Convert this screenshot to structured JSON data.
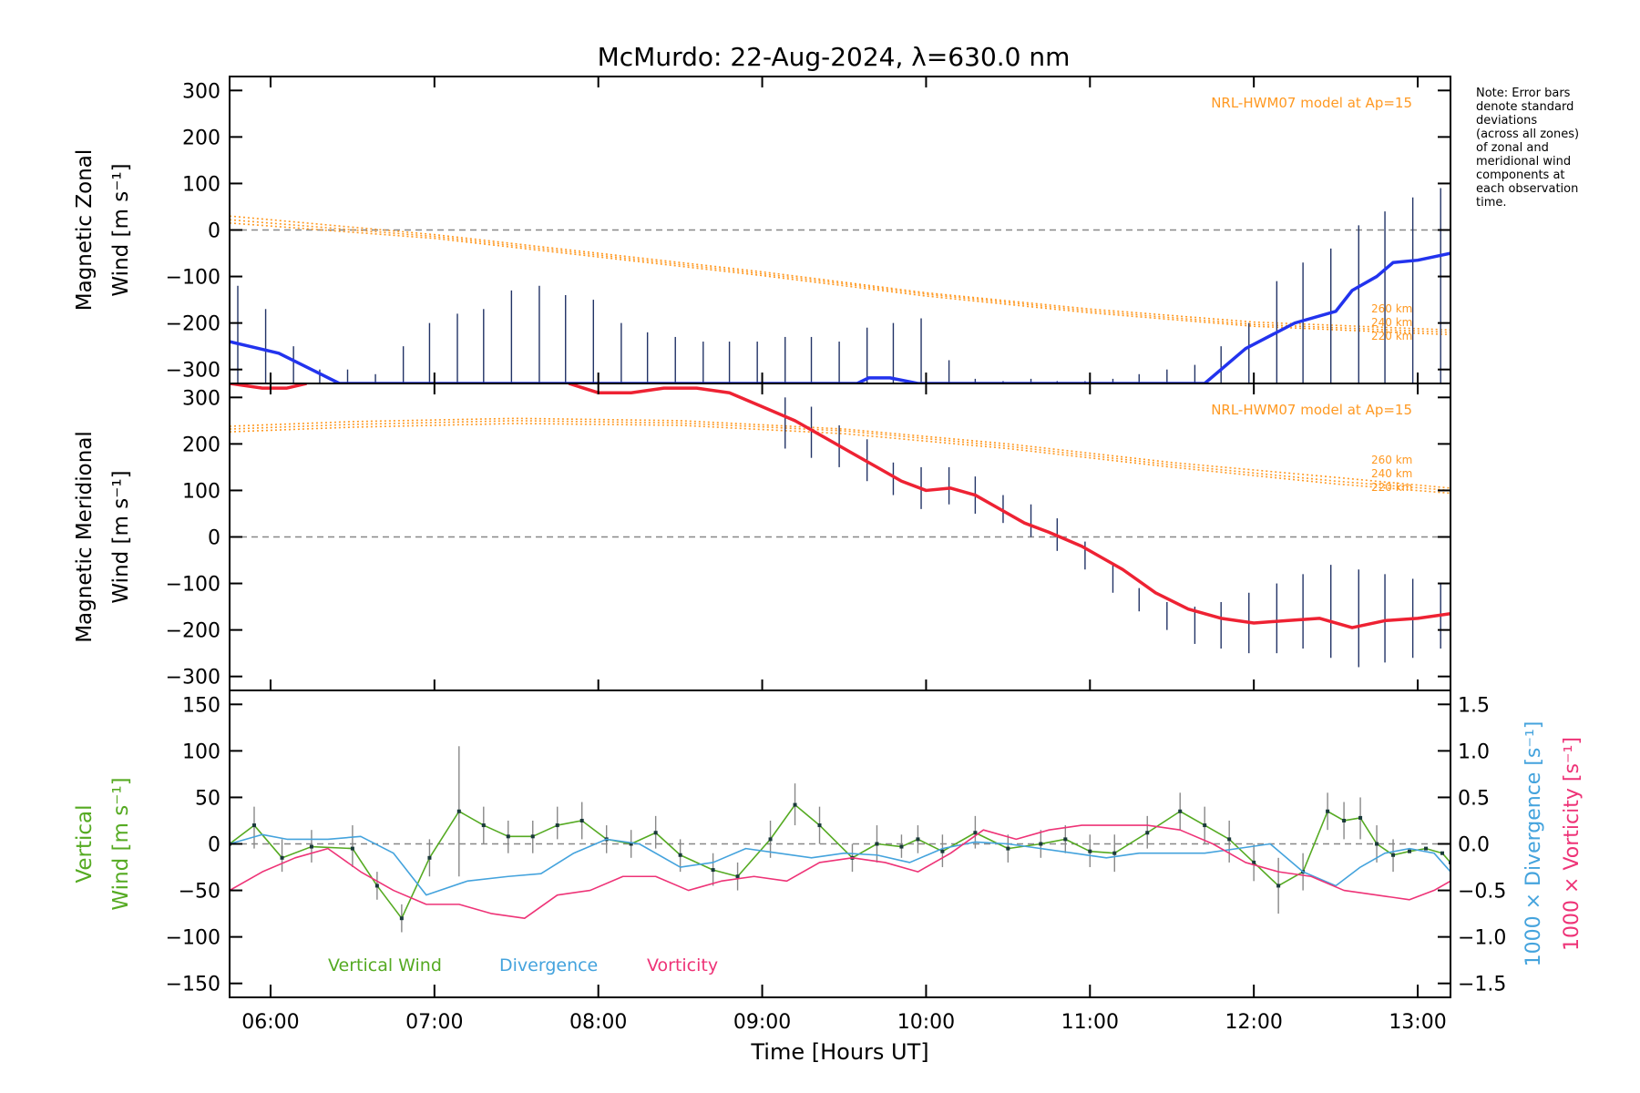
{
  "title": "McMurdo: 22-Aug-2024, λ=630.0 nm",
  "note": "Note: Error bars\ndenote standard\ndeviations\n(across all zones)\nof zonal and\nmeridional wind\ncomponents at\neach observation\ntime.",
  "colors": {
    "zonal": "#2233ee",
    "meridional": "#ee2233",
    "vertical": "#55aa22",
    "divergence": "#44a3dd",
    "vorticity": "#ee3377",
    "model": "#ff9922",
    "errorbar": "#223366",
    "zero": "#888888"
  },
  "chart_data": [
    {
      "type": "line",
      "panel": "zonal",
      "ylabel": [
        "Magnetic Zonal",
        "Wind [m s⁻¹]"
      ],
      "ylim": [
        -330,
        330
      ],
      "yticks": [
        300,
        200,
        100,
        0,
        -100,
        -200,
        -300
      ],
      "xlim": [
        5.75,
        13.2
      ],
      "model_label": "NRL-HWM07 model at Ap=15",
      "model_curves": [
        {
          "name": "260 km",
          "x": [
            5.75,
            7,
            8,
            9,
            10,
            11,
            12,
            13.2
          ],
          "y": [
            30,
            -10,
            -50,
            -90,
            -135,
            -170,
            -198,
            -215
          ]
        },
        {
          "name": "240 km",
          "x": [
            5.75,
            7,
            8,
            9,
            10,
            11,
            12,
            13.2
          ],
          "y": [
            22,
            -14,
            -54,
            -94,
            -138,
            -174,
            -203,
            -220
          ]
        },
        {
          "name": "220 km",
          "x": [
            5.75,
            7,
            8,
            9,
            10,
            11,
            12,
            13.2
          ],
          "y": [
            15,
            -18,
            -58,
            -98,
            -142,
            -178,
            -207,
            -225
          ]
        }
      ],
      "model_height_labels": [
        "260 km",
        "240 km",
        "220 km"
      ],
      "series": [
        {
          "name": "",
          "x": [
            5.75,
            6.05,
            6.25,
            6.42,
            9.58,
            9.65,
            9.78,
            9.95,
            11.7,
            11.95,
            12.25,
            12.5,
            12.6,
            12.75,
            12.85,
            13.0,
            13.2
          ],
          "y": [
            -240,
            -265,
            -300,
            -330,
            -330,
            -318,
            -318,
            -330,
            -330,
            -255,
            -200,
            -175,
            -130,
            -100,
            -70,
            -65,
            -50
          ]
        }
      ],
      "errorbars": {
        "x": [
          5.8,
          5.97,
          6.14,
          6.3,
          6.47,
          6.64,
          6.81,
          6.97,
          7.14,
          7.3,
          7.47,
          7.64,
          7.8,
          7.97,
          8.14,
          8.3,
          8.47,
          8.64,
          8.8,
          8.97,
          9.14,
          9.3,
          9.47,
          9.64,
          9.8,
          9.97,
          10.14,
          10.3,
          10.47,
          10.64,
          10.8,
          10.97,
          11.14,
          11.3,
          11.47,
          11.64,
          11.8,
          11.97,
          12.14,
          12.3,
          12.47,
          12.64,
          12.8,
          12.97,
          13.14
        ],
        "low": [
          -330,
          -330,
          -330,
          -330,
          -330,
          -330,
          -330,
          -330,
          -330,
          -330,
          -330,
          -330,
          -330,
          -330,
          -330,
          -330,
          -330,
          -330,
          -330,
          -330,
          -330,
          -330,
          -330,
          -330,
          -330,
          -330,
          -330,
          -330,
          -330,
          -330,
          -330,
          -330,
          -330,
          -330,
          -330,
          -330,
          -330,
          -330,
          -330,
          -330,
          -330,
          -330,
          -330,
          -330,
          -330
        ],
        "high": [
          -120,
          -170,
          -250,
          -300,
          -300,
          -310,
          -250,
          -200,
          -180,
          -170,
          -130,
          -120,
          -140,
          -150,
          -200,
          -220,
          -230,
          -240,
          -240,
          -240,
          -230,
          -230,
          -240,
          -210,
          -200,
          -190,
          -280,
          -320,
          -325,
          -320,
          -325,
          -325,
          -320,
          -310,
          -300,
          -290,
          -250,
          -200,
          -110,
          -70,
          -40,
          10,
          40,
          70,
          90
        ]
      }
    },
    {
      "type": "line",
      "panel": "meridional",
      "ylabel": [
        "Magnetic Meridional",
        "Wind [m s⁻¹]"
      ],
      "ylim": [
        -330,
        330
      ],
      "yticks": [
        300,
        200,
        100,
        0,
        -100,
        -200,
        -300
      ],
      "xlim": [
        5.75,
        13.2
      ],
      "model_label": "NRL-HWM07 model at Ap=15",
      "model_curves": [
        {
          "name": "260 km",
          "x": [
            5.75,
            6.5,
            7.5,
            8.5,
            9.5,
            10.5,
            11.5,
            12.5,
            13.2
          ],
          "y": [
            238,
            248,
            255,
            250,
            232,
            200,
            160,
            128,
            105
          ]
        },
        {
          "name": "240 km",
          "x": [
            5.75,
            6.5,
            7.5,
            8.5,
            9.5,
            10.5,
            11.5,
            12.5,
            13.2
          ],
          "y": [
            232,
            242,
            250,
            245,
            228,
            195,
            155,
            120,
            100
          ]
        },
        {
          "name": "220 km",
          "x": [
            5.75,
            6.5,
            7.5,
            8.5,
            9.5,
            10.5,
            11.5,
            12.5,
            13.2
          ],
          "y": [
            226,
            236,
            244,
            240,
            222,
            190,
            150,
            114,
            94
          ]
        }
      ],
      "model_height_labels": [
        "260 km",
        "240 km",
        "220 km"
      ],
      "series": [
        {
          "name": "",
          "x": [
            5.75,
            5.95,
            6.1,
            6.22
          ],
          "y": [
            330,
            320,
            320,
            330
          ]
        },
        {
          "name": "",
          "x": [
            7.82,
            8.0,
            8.2,
            8.4,
            8.6,
            8.8,
            9.0,
            9.2,
            9.4,
            9.55,
            9.7,
            9.85,
            10.0,
            10.15,
            10.3,
            10.45,
            10.6,
            10.75,
            10.95,
            11.2,
            11.4,
            11.6,
            11.8,
            12.0,
            12.2,
            12.4,
            12.6,
            12.8,
            13.0,
            13.2
          ],
          "y": [
            330,
            310,
            310,
            320,
            320,
            310,
            280,
            250,
            210,
            180,
            150,
            120,
            100,
            105,
            90,
            60,
            30,
            10,
            -20,
            -70,
            -120,
            -155,
            -175,
            -185,
            -180,
            -175,
            -195,
            -180,
            -175,
            -165
          ]
        }
      ],
      "errorbars": {
        "x": [
          9.14,
          9.3,
          9.47,
          9.64,
          9.8,
          9.97,
          10.14,
          10.3,
          10.47,
          10.64,
          10.8,
          10.97,
          11.14,
          11.3,
          11.47,
          11.64,
          11.8,
          11.97,
          12.14,
          12.3,
          12.47,
          12.64,
          12.8,
          12.97,
          13.14
        ],
        "low": [
          190,
          170,
          150,
          120,
          90,
          60,
          70,
          50,
          30,
          0,
          -30,
          -70,
          -120,
          -160,
          -200,
          -230,
          -240,
          -250,
          -250,
          -240,
          -260,
          -280,
          -270,
          -260,
          -240
        ],
        "high": [
          300,
          280,
          240,
          210,
          160,
          150,
          150,
          130,
          90,
          70,
          40,
          -10,
          -60,
          -110,
          -140,
          -150,
          -140,
          -120,
          -100,
          -80,
          -60,
          -70,
          -80,
          -90,
          -100
        ]
      }
    },
    {
      "type": "line",
      "panel": "vertical",
      "ylabel": [
        "Vertical",
        "Wind [m s⁻¹]"
      ],
      "ylim": [
        -165,
        165
      ],
      "yticks": [
        150,
        100,
        50,
        0,
        -50,
        -100,
        -150
      ],
      "y2label_divergence": "1000 × Divergence [s⁻¹]",
      "y2label_vorticity": "1000 × Vorticity [s⁻¹]",
      "y2lim": [
        -1.65,
        1.65
      ],
      "y2ticks": [
        1.5,
        1.0,
        0.5,
        0.0,
        -0.5,
        -1.0,
        -1.5
      ],
      "y2ticklabels": [
        "1.5",
        "1.0",
        "0.5",
        "0.0",
        "−0.5",
        "−1.0",
        "−1.5"
      ],
      "xlim": [
        5.75,
        13.2
      ],
      "xticks": [
        6,
        7,
        8,
        9,
        10,
        11,
        12,
        13
      ],
      "xticklabels": [
        "06:00",
        "07:00",
        "08:00",
        "09:00",
        "10:00",
        "11:00",
        "12:00",
        "13:00"
      ],
      "xlabel": "Time [Hours UT]",
      "legend": [
        "Vertical Wind",
        "Divergence",
        "Vorticity"
      ],
      "series": [
        {
          "name": "Vertical Wind",
          "x": [
            5.75,
            5.9,
            6.07,
            6.25,
            6.5,
            6.65,
            6.8,
            6.97,
            7.15,
            7.3,
            7.45,
            7.6,
            7.75,
            7.9,
            8.05,
            8.2,
            8.35,
            8.5,
            8.7,
            8.85,
            9.05,
            9.2,
            9.35,
            9.55,
            9.7,
            9.85,
            9.95,
            10.1,
            10.3,
            10.5,
            10.7,
            10.85,
            11.0,
            11.15,
            11.35,
            11.55,
            11.7,
            11.85,
            12.0,
            12.15,
            12.3,
            12.45,
            12.55,
            12.65,
            12.75,
            12.85,
            12.95,
            13.05,
            13.15,
            13.2
          ],
          "y": [
            0,
            20,
            -15,
            -3,
            -5,
            -45,
            -80,
            -15,
            35,
            20,
            8,
            8,
            20,
            25,
            5,
            0,
            12,
            -12,
            -28,
            -35,
            5,
            42,
            20,
            -15,
            0,
            -3,
            5,
            -8,
            12,
            -5,
            0,
            5,
            -8,
            -10,
            12,
            35,
            20,
            5,
            -20,
            -45,
            -30,
            35,
            25,
            28,
            0,
            -12,
            -8,
            -5,
            -10,
            -20
          ]
        },
        {
          "name": "Divergence",
          "x": [
            5.75,
            5.95,
            6.1,
            6.35,
            6.55,
            6.75,
            6.95,
            7.2,
            7.45,
            7.65,
            7.85,
            8.05,
            8.25,
            8.5,
            8.7,
            8.9,
            9.1,
            9.3,
            9.5,
            9.7,
            9.9,
            10.1,
            10.3,
            10.5,
            10.7,
            10.9,
            11.1,
            11.3,
            11.5,
            11.7,
            11.9,
            12.1,
            12.3,
            12.5,
            12.65,
            12.8,
            12.95,
            13.1,
            13.2
          ],
          "y": [
            0.0,
            0.1,
            0.05,
            0.05,
            0.08,
            -0.1,
            -0.55,
            -0.4,
            -0.35,
            -0.32,
            -0.1,
            0.05,
            0.0,
            -0.25,
            -0.2,
            -0.05,
            -0.1,
            -0.15,
            -0.1,
            -0.12,
            -0.2,
            -0.05,
            0.02,
            0.0,
            -0.05,
            -0.1,
            -0.15,
            -0.1,
            -0.1,
            -0.1,
            -0.05,
            0.0,
            -0.3,
            -0.45,
            -0.25,
            -0.1,
            -0.05,
            -0.1,
            -0.3
          ]
        },
        {
          "name": "Vorticity",
          "x": [
            5.75,
            5.95,
            6.15,
            6.35,
            6.55,
            6.75,
            6.95,
            7.15,
            7.35,
            7.55,
            7.75,
            7.95,
            8.15,
            8.35,
            8.55,
            8.75,
            8.95,
            9.15,
            9.35,
            9.55,
            9.75,
            9.95,
            10.15,
            10.35,
            10.55,
            10.75,
            10.95,
            11.15,
            11.35,
            11.55,
            11.75,
            11.95,
            12.15,
            12.35,
            12.55,
            12.75,
            12.95,
            13.1,
            13.2
          ],
          "y": [
            -0.5,
            -0.3,
            -0.15,
            -0.05,
            -0.3,
            -0.5,
            -0.65,
            -0.65,
            -0.75,
            -0.8,
            -0.55,
            -0.5,
            -0.35,
            -0.35,
            -0.5,
            -0.4,
            -0.35,
            -0.4,
            -0.2,
            -0.15,
            -0.2,
            -0.3,
            -0.1,
            0.15,
            0.05,
            0.15,
            0.2,
            0.2,
            0.2,
            0.15,
            0.0,
            -0.2,
            -0.3,
            -0.35,
            -0.5,
            -0.55,
            -0.6,
            -0.5,
            -0.4
          ]
        }
      ],
      "errorbars": {
        "x": [
          5.9,
          6.07,
          6.25,
          6.5,
          6.65,
          6.8,
          6.97,
          7.15,
          7.3,
          7.45,
          7.6,
          7.75,
          7.9,
          8.05,
          8.2,
          8.35,
          8.5,
          8.7,
          8.85,
          9.05,
          9.2,
          9.35,
          9.55,
          9.7,
          9.85,
          9.95,
          10.1,
          10.3,
          10.5,
          10.7,
          10.85,
          11.0,
          11.15,
          11.35,
          11.55,
          11.7,
          11.85,
          12.0,
          12.15,
          12.3,
          12.45,
          12.55,
          12.65,
          12.75,
          12.85
        ],
        "low": [
          -5,
          -30,
          -20,
          -25,
          -60,
          -95,
          -35,
          -35,
          0,
          -10,
          -10,
          5,
          5,
          -10,
          -15,
          -5,
          -30,
          -45,
          -50,
          -15,
          20,
          0,
          -30,
          -20,
          -15,
          -10,
          -25,
          -5,
          -20,
          -15,
          -10,
          -25,
          -30,
          -5,
          15,
          0,
          -20,
          -40,
          -75,
          -50,
          15,
          5,
          5,
          -20,
          -30
        ],
        "high": [
          40,
          5,
          15,
          20,
          -30,
          -65,
          5,
          105,
          40,
          25,
          25,
          40,
          45,
          20,
          15,
          30,
          5,
          -10,
          -20,
          25,
          65,
          40,
          0,
          20,
          10,
          20,
          10,
          30,
          10,
          15,
          20,
          10,
          10,
          30,
          55,
          40,
          25,
          0,
          -15,
          -10,
          55,
          45,
          50,
          20,
          5
        ]
      }
    }
  ]
}
